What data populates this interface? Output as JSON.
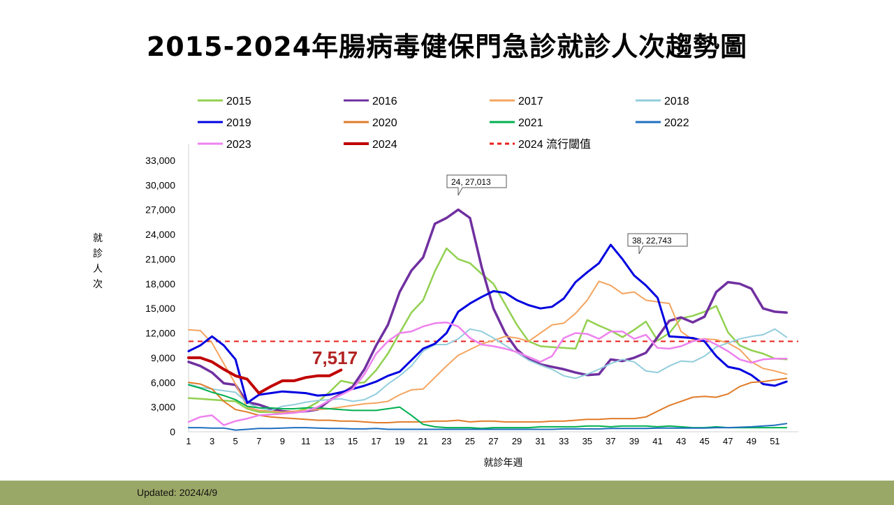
{
  "title": "2015-2024年腸病毒健保門急診就診人次趨勢圖",
  "updated": "Updated: 2024/4/9",
  "chart_data": {
    "type": "line",
    "title": "2015-2024年腸病毒健保門急診就診人次趨勢圖",
    "xlabel": "就診年週",
    "ylabel": "就診人次",
    "xlim": [
      1,
      53
    ],
    "ylim": [
      0,
      33000
    ],
    "x_ticks": [
      "1",
      "3",
      "5",
      "7",
      "9",
      "11",
      "13",
      "15",
      "17",
      "19",
      "21",
      "23",
      "25",
      "27",
      "29",
      "31",
      "33",
      "35",
      "37",
      "39",
      "41",
      "43",
      "45",
      "47",
      "49",
      "51"
    ],
    "y_ticks": [
      "0",
      "3,000",
      "6,000",
      "9,000",
      "12,000",
      "15,000",
      "18,000",
      "21,000",
      "24,000",
      "27,000",
      "30,000",
      "33,000"
    ],
    "grid": false,
    "legend_position": "top",
    "threshold": {
      "name": "2024 流行閾值",
      "value": 11000,
      "color": "#e8201b"
    },
    "annotations": [
      {
        "text": "24, 27,013",
        "x": 24,
        "y": 27013
      },
      {
        "text": "38, 22,743",
        "x": 38,
        "y": 22743
      },
      {
        "text": "7,517",
        "x": 14,
        "y": 7517
      }
    ],
    "series": [
      {
        "name": "2015",
        "color": "#92d050",
        "width": 2.5,
        "values": [
          4100,
          4000,
          3900,
          3800,
          3700,
          2800,
          2400,
          2400,
          2300,
          2400,
          2800,
          3600,
          4800,
          6200,
          5900,
          6000,
          7500,
          9500,
          12000,
          14500,
          16000,
          19500,
          22300,
          21000,
          20500,
          19200,
          18000,
          15500,
          13000,
          11000,
          10400,
          10300,
          10200,
          10100,
          13600,
          12900,
          12300,
          11500,
          12400,
          13400,
          11100,
          12000,
          13800,
          14100,
          14600,
          15300,
          12100,
          10500,
          9900,
          9500,
          8900,
          8800
        ]
      },
      {
        "name": "2016",
        "color": "#7030a0",
        "width": 3.5,
        "values": [
          8500,
          8000,
          7200,
          5900,
          5700,
          3600,
          3300,
          2800,
          2500,
          2400,
          2500,
          2700,
          3800,
          4600,
          5500,
          7600,
          10500,
          13000,
          17000,
          19600,
          21200,
          25300,
          26000,
          27013,
          26000,
          20000,
          15000,
          12000,
          10000,
          8800,
          8200,
          7900,
          7600,
          7200,
          6900,
          7000,
          8800,
          8600,
          9000,
          9600,
          11500,
          13500,
          13900,
          13300,
          14000,
          17000,
          18200,
          18000,
          17400,
          15000,
          14600,
          14500
        ]
      },
      {
        "name": "2017",
        "color": "#f4a460",
        "width": 2,
        "values": [
          12400,
          12300,
          10800,
          8300,
          5800,
          3000,
          2600,
          2500,
          2400,
          2500,
          2600,
          2700,
          2800,
          3000,
          3200,
          3400,
          3500,
          3700,
          4500,
          5100,
          5200,
          6600,
          8000,
          9300,
          10000,
          10700,
          11100,
          11600,
          11400,
          11000,
          12000,
          13000,
          13200,
          14400,
          16000,
          18300,
          17800,
          16800,
          17000,
          16000,
          15800,
          15600,
          12200,
          11200,
          11300,
          11200,
          10800,
          10000,
          8500,
          7700,
          7400,
          7000
        ]
      },
      {
        "name": "2018",
        "color": "#92cddc",
        "width": 2,
        "values": [
          5800,
          5400,
          5200,
          5000,
          4800,
          3500,
          2900,
          2600,
          3100,
          3300,
          3600,
          3800,
          3900,
          4000,
          3700,
          3900,
          4600,
          5800,
          6800,
          8000,
          9800,
          10600,
          10600,
          11300,
          12500,
          12200,
          11400,
          10500,
          9600,
          8700,
          8100,
          7600,
          6800,
          6500,
          7000,
          7600,
          8300,
          8800,
          8500,
          7400,
          7200,
          8000,
          8600,
          8500,
          9200,
          10300,
          10800,
          11300,
          11600,
          11800,
          12500,
          11500
        ]
      },
      {
        "name": "2019",
        "color": "#0000e0",
        "width": 3,
        "values": [
          9800,
          10500,
          11600,
          10500,
          8800,
          3500,
          4500,
          4700,
          4900,
          4800,
          4700,
          4400,
          4500,
          4800,
          5200,
          5600,
          6100,
          6800,
          7300,
          8700,
          10100,
          10700,
          12000,
          14600,
          15600,
          16400,
          17100,
          16900,
          16000,
          15400,
          15000,
          15200,
          16200,
          18200,
          19400,
          20500,
          22743,
          21000,
          19000,
          17800,
          16300,
          11600,
          11500,
          11400,
          11000,
          9200,
          7900,
          7600,
          6900,
          5800,
          5600,
          6100
        ]
      },
      {
        "name": "2020",
        "color": "#e07b28",
        "width": 2,
        "values": [
          6000,
          5800,
          5200,
          3700,
          2700,
          2400,
          2000,
          1800,
          1700,
          1600,
          1500,
          1400,
          1400,
          1300,
          1300,
          1200,
          1100,
          1100,
          1200,
          1200,
          1200,
          1300,
          1300,
          1400,
          1200,
          1300,
          1300,
          1200,
          1200,
          1200,
          1200,
          1300,
          1300,
          1400,
          1500,
          1500,
          1600,
          1600,
          1600,
          1800,
          2500,
          3200,
          3700,
          4200,
          4300,
          4200,
          4600,
          5500,
          6000,
          6100,
          6300,
          6500
        ]
      },
      {
        "name": "2021",
        "color": "#00b050",
        "width": 2,
        "values": [
          5700,
          5300,
          4800,
          4400,
          3900,
          3100,
          2900,
          2900,
          2800,
          2800,
          2900,
          2900,
          2800,
          2700,
          2600,
          2600,
          2600,
          2800,
          3000,
          2000,
          900,
          600,
          500,
          500,
          500,
          400,
          500,
          500,
          500,
          500,
          600,
          600,
          600,
          600,
          700,
          700,
          600,
          700,
          700,
          700,
          600,
          700,
          600,
          500,
          500,
          600,
          500,
          500,
          500,
          500,
          500,
          500
        ]
      },
      {
        "name": "2022",
        "color": "#1f6fbf",
        "width": 2,
        "values": [
          500,
          500,
          450,
          450,
          200,
          300,
          400,
          400,
          450,
          500,
          500,
          450,
          400,
          400,
          350,
          350,
          400,
          300,
          300,
          300,
          300,
          300,
          300,
          300,
          300,
          300,
          300,
          300,
          300,
          300,
          300,
          300,
          350,
          350,
          350,
          350,
          400,
          400,
          400,
          400,
          450,
          450,
          450,
          450,
          450,
          500,
          500,
          550,
          600,
          700,
          800,
          1000
        ]
      },
      {
        "name": "2023",
        "color": "#ee82ee",
        "width": 2.5,
        "values": [
          1200,
          1800,
          2000,
          800,
          1300,
          1600,
          2000,
          2100,
          2200,
          2300,
          2500,
          3000,
          3800,
          4500,
          5200,
          7000,
          9500,
          11000,
          12000,
          12200,
          12800,
          13200,
          13300,
          12800,
          11400,
          10600,
          10400,
          10100,
          9700,
          9100,
          8500,
          9200,
          11400,
          12000,
          11900,
          11300,
          12200,
          12200,
          11300,
          11800,
          10200,
          10100,
          10400,
          11000,
          11300,
          10600,
          9800,
          8800,
          8400,
          8800,
          8900,
          8900
        ]
      },
      {
        "name": "2024",
        "color": "#c00000",
        "width": 4,
        "values": [
          9000,
          9000,
          8500,
          7600,
          6800,
          6400,
          4700,
          5500,
          6200,
          6200,
          6600,
          6800,
          6800,
          7517
        ]
      }
    ]
  }
}
